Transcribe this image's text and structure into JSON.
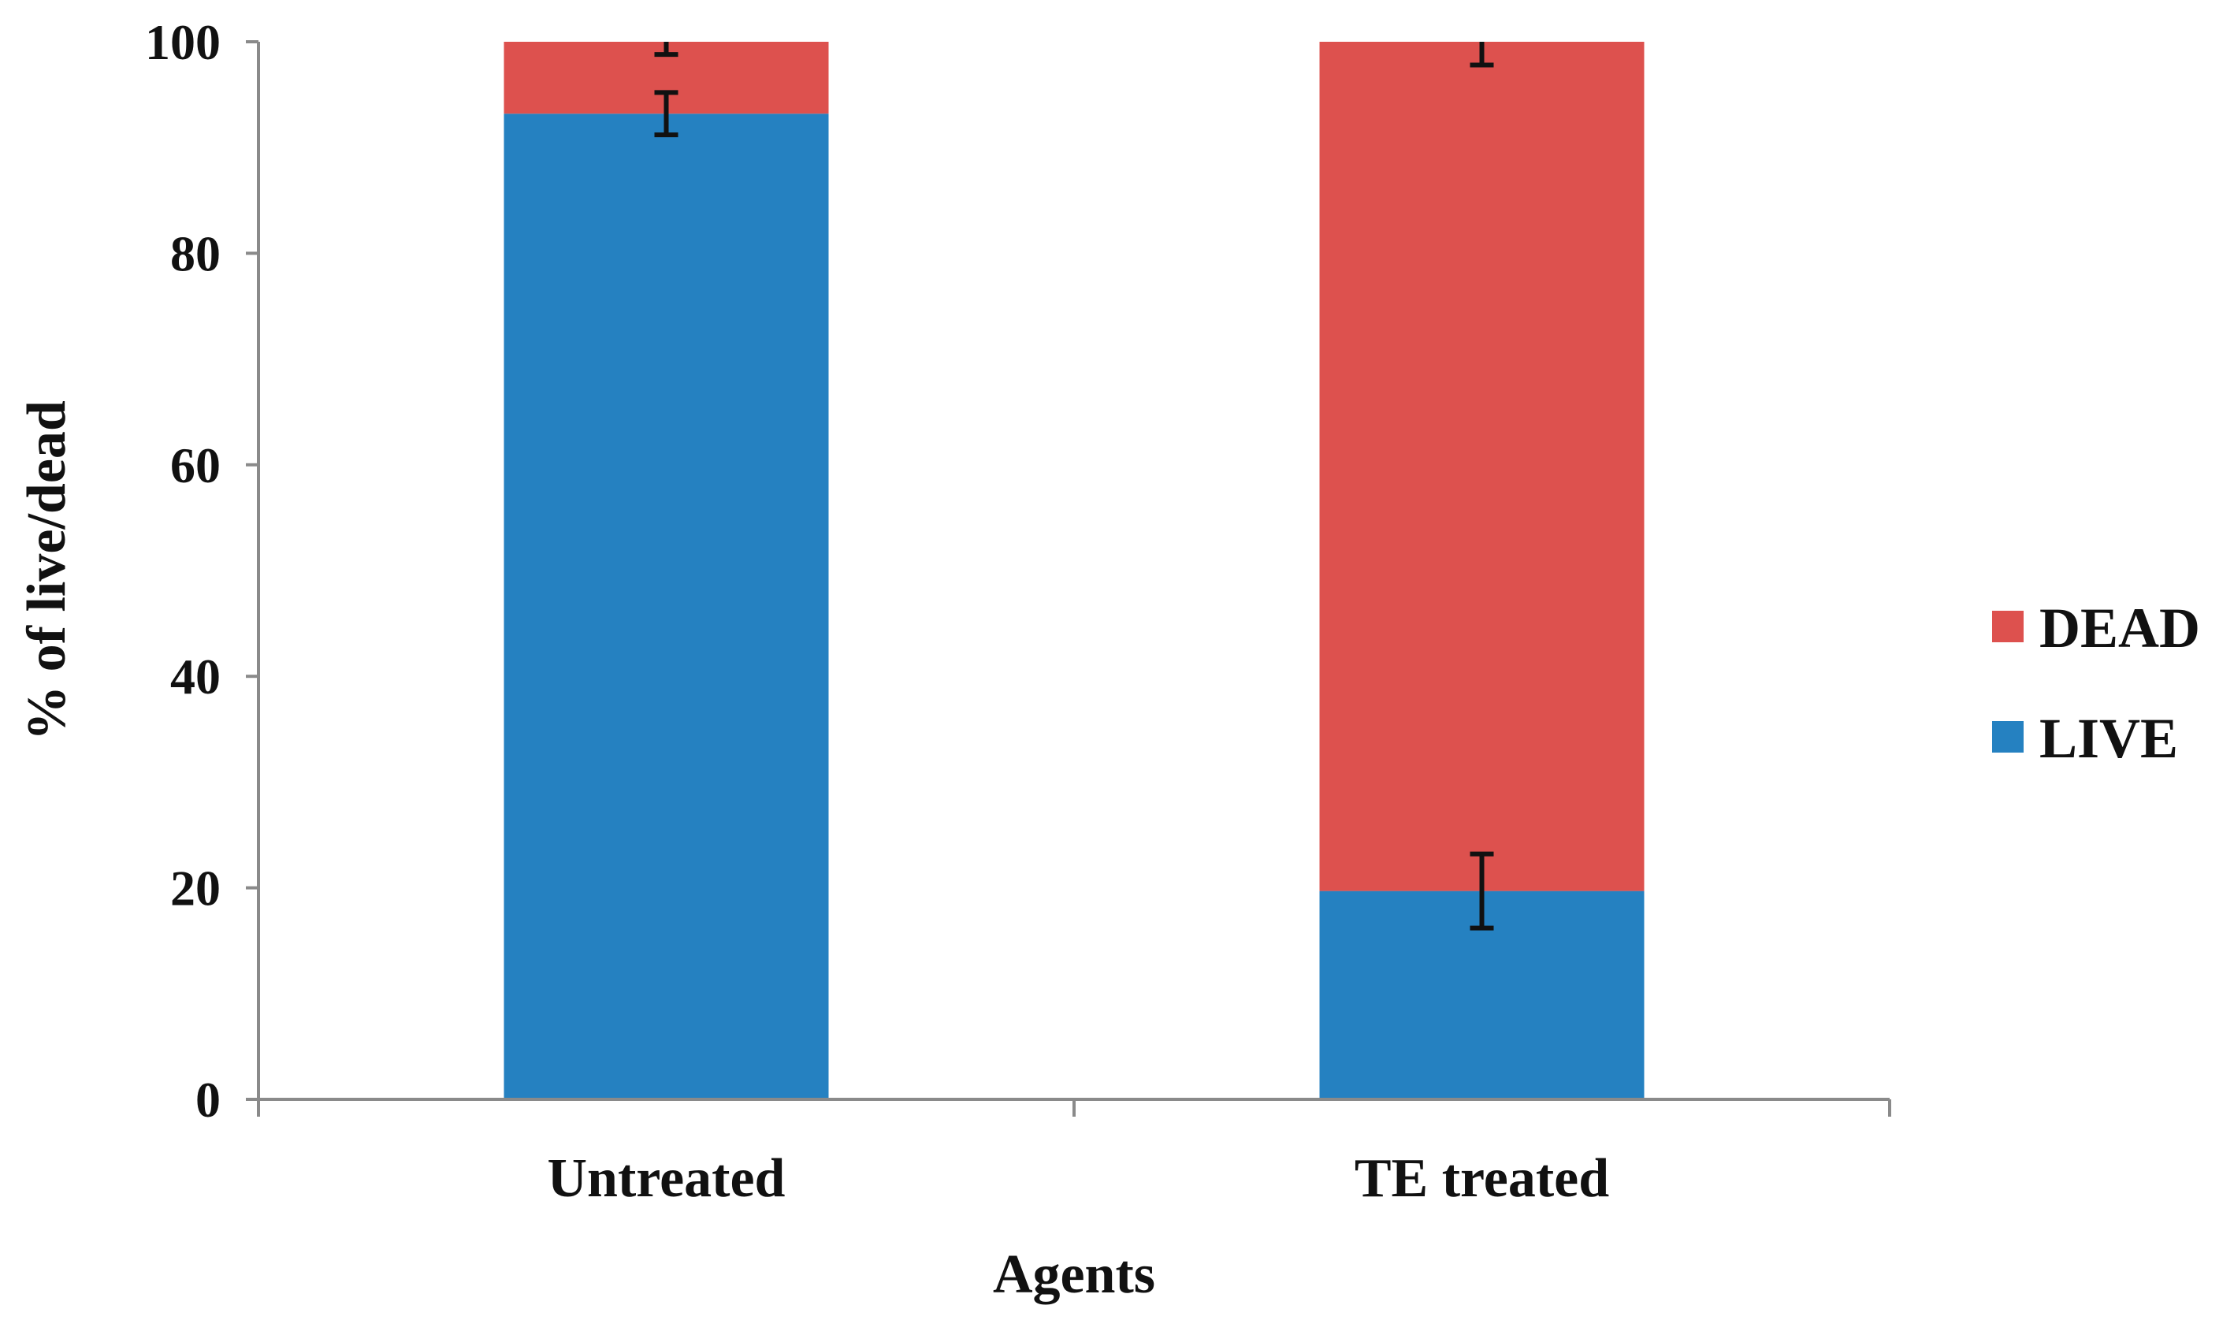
{
  "chart_data": {
    "type": "bar",
    "stacked": true,
    "title": "",
    "xlabel": "Agents",
    "ylabel": "% of live/dead",
    "ylim": [
      0,
      100
    ],
    "yticks": [
      0,
      20,
      40,
      60,
      80,
      100
    ],
    "ytick_labels": [
      "0",
      "20",
      "40",
      "60",
      "80",
      "100"
    ],
    "categories": [
      "Untreated",
      "TE treated"
    ],
    "series": [
      {
        "name": "LIVE",
        "color": "#2581c1",
        "values": [
          93.2,
          19.7
        ],
        "errors": [
          2.0,
          3.5
        ]
      },
      {
        "name": "DEAD",
        "color": "#dd514e",
        "values": [
          6.8,
          80.3
        ],
        "errors": [
          1.2,
          2.2
        ]
      }
    ],
    "legend": {
      "position": "right",
      "order": [
        "DEAD",
        "LIVE"
      ]
    },
    "grid": false
  }
}
